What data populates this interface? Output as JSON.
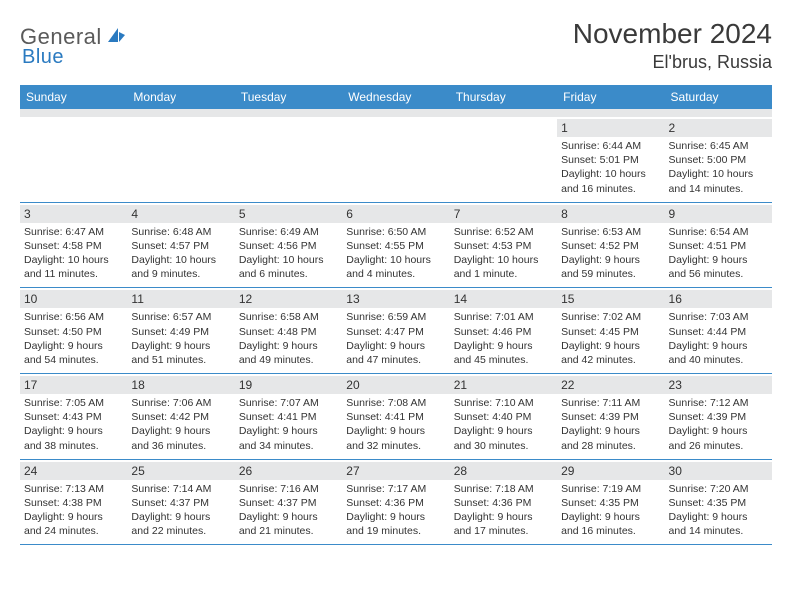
{
  "logo": {
    "textA": "General",
    "textB": "Blue"
  },
  "title": "November 2024",
  "location": "El'brus, Russia",
  "colors": {
    "header_bar": "#3b8bc9",
    "gray_bar": "#e6e7e8",
    "text": "#3a3a3a",
    "logo_blue": "#2a7ac0"
  },
  "weekdays": [
    "Sunday",
    "Monday",
    "Tuesday",
    "Wednesday",
    "Thursday",
    "Friday",
    "Saturday"
  ],
  "weeks": [
    [
      null,
      null,
      null,
      null,
      null,
      {
        "n": "1",
        "sr": "Sunrise: 6:44 AM",
        "ss": "Sunset: 5:01 PM",
        "d1": "Daylight: 10 hours",
        "d2": "and 16 minutes."
      },
      {
        "n": "2",
        "sr": "Sunrise: 6:45 AM",
        "ss": "Sunset: 5:00 PM",
        "d1": "Daylight: 10 hours",
        "d2": "and 14 minutes."
      }
    ],
    [
      {
        "n": "3",
        "sr": "Sunrise: 6:47 AM",
        "ss": "Sunset: 4:58 PM",
        "d1": "Daylight: 10 hours",
        "d2": "and 11 minutes."
      },
      {
        "n": "4",
        "sr": "Sunrise: 6:48 AM",
        "ss": "Sunset: 4:57 PM",
        "d1": "Daylight: 10 hours",
        "d2": "and 9 minutes."
      },
      {
        "n": "5",
        "sr": "Sunrise: 6:49 AM",
        "ss": "Sunset: 4:56 PM",
        "d1": "Daylight: 10 hours",
        "d2": "and 6 minutes."
      },
      {
        "n": "6",
        "sr": "Sunrise: 6:50 AM",
        "ss": "Sunset: 4:55 PM",
        "d1": "Daylight: 10 hours",
        "d2": "and 4 minutes."
      },
      {
        "n": "7",
        "sr": "Sunrise: 6:52 AM",
        "ss": "Sunset: 4:53 PM",
        "d1": "Daylight: 10 hours",
        "d2": "and 1 minute."
      },
      {
        "n": "8",
        "sr": "Sunrise: 6:53 AM",
        "ss": "Sunset: 4:52 PM",
        "d1": "Daylight: 9 hours",
        "d2": "and 59 minutes."
      },
      {
        "n": "9",
        "sr": "Sunrise: 6:54 AM",
        "ss": "Sunset: 4:51 PM",
        "d1": "Daylight: 9 hours",
        "d2": "and 56 minutes."
      }
    ],
    [
      {
        "n": "10",
        "sr": "Sunrise: 6:56 AM",
        "ss": "Sunset: 4:50 PM",
        "d1": "Daylight: 9 hours",
        "d2": "and 54 minutes."
      },
      {
        "n": "11",
        "sr": "Sunrise: 6:57 AM",
        "ss": "Sunset: 4:49 PM",
        "d1": "Daylight: 9 hours",
        "d2": "and 51 minutes."
      },
      {
        "n": "12",
        "sr": "Sunrise: 6:58 AM",
        "ss": "Sunset: 4:48 PM",
        "d1": "Daylight: 9 hours",
        "d2": "and 49 minutes."
      },
      {
        "n": "13",
        "sr": "Sunrise: 6:59 AM",
        "ss": "Sunset: 4:47 PM",
        "d1": "Daylight: 9 hours",
        "d2": "and 47 minutes."
      },
      {
        "n": "14",
        "sr": "Sunrise: 7:01 AM",
        "ss": "Sunset: 4:46 PM",
        "d1": "Daylight: 9 hours",
        "d2": "and 45 minutes."
      },
      {
        "n": "15",
        "sr": "Sunrise: 7:02 AM",
        "ss": "Sunset: 4:45 PM",
        "d1": "Daylight: 9 hours",
        "d2": "and 42 minutes."
      },
      {
        "n": "16",
        "sr": "Sunrise: 7:03 AM",
        "ss": "Sunset: 4:44 PM",
        "d1": "Daylight: 9 hours",
        "d2": "and 40 minutes."
      }
    ],
    [
      {
        "n": "17",
        "sr": "Sunrise: 7:05 AM",
        "ss": "Sunset: 4:43 PM",
        "d1": "Daylight: 9 hours",
        "d2": "and 38 minutes."
      },
      {
        "n": "18",
        "sr": "Sunrise: 7:06 AM",
        "ss": "Sunset: 4:42 PM",
        "d1": "Daylight: 9 hours",
        "d2": "and 36 minutes."
      },
      {
        "n": "19",
        "sr": "Sunrise: 7:07 AM",
        "ss": "Sunset: 4:41 PM",
        "d1": "Daylight: 9 hours",
        "d2": "and 34 minutes."
      },
      {
        "n": "20",
        "sr": "Sunrise: 7:08 AM",
        "ss": "Sunset: 4:41 PM",
        "d1": "Daylight: 9 hours",
        "d2": "and 32 minutes."
      },
      {
        "n": "21",
        "sr": "Sunrise: 7:10 AM",
        "ss": "Sunset: 4:40 PM",
        "d1": "Daylight: 9 hours",
        "d2": "and 30 minutes."
      },
      {
        "n": "22",
        "sr": "Sunrise: 7:11 AM",
        "ss": "Sunset: 4:39 PM",
        "d1": "Daylight: 9 hours",
        "d2": "and 28 minutes."
      },
      {
        "n": "23",
        "sr": "Sunrise: 7:12 AM",
        "ss": "Sunset: 4:39 PM",
        "d1": "Daylight: 9 hours",
        "d2": "and 26 minutes."
      }
    ],
    [
      {
        "n": "24",
        "sr": "Sunrise: 7:13 AM",
        "ss": "Sunset: 4:38 PM",
        "d1": "Daylight: 9 hours",
        "d2": "and 24 minutes."
      },
      {
        "n": "25",
        "sr": "Sunrise: 7:14 AM",
        "ss": "Sunset: 4:37 PM",
        "d1": "Daylight: 9 hours",
        "d2": "and 22 minutes."
      },
      {
        "n": "26",
        "sr": "Sunrise: 7:16 AM",
        "ss": "Sunset: 4:37 PM",
        "d1": "Daylight: 9 hours",
        "d2": "and 21 minutes."
      },
      {
        "n": "27",
        "sr": "Sunrise: 7:17 AM",
        "ss": "Sunset: 4:36 PM",
        "d1": "Daylight: 9 hours",
        "d2": "and 19 minutes."
      },
      {
        "n": "28",
        "sr": "Sunrise: 7:18 AM",
        "ss": "Sunset: 4:36 PM",
        "d1": "Daylight: 9 hours",
        "d2": "and 17 minutes."
      },
      {
        "n": "29",
        "sr": "Sunrise: 7:19 AM",
        "ss": "Sunset: 4:35 PM",
        "d1": "Daylight: 9 hours",
        "d2": "and 16 minutes."
      },
      {
        "n": "30",
        "sr": "Sunrise: 7:20 AM",
        "ss": "Sunset: 4:35 PM",
        "d1": "Daylight: 9 hours",
        "d2": "and 14 minutes."
      }
    ]
  ]
}
